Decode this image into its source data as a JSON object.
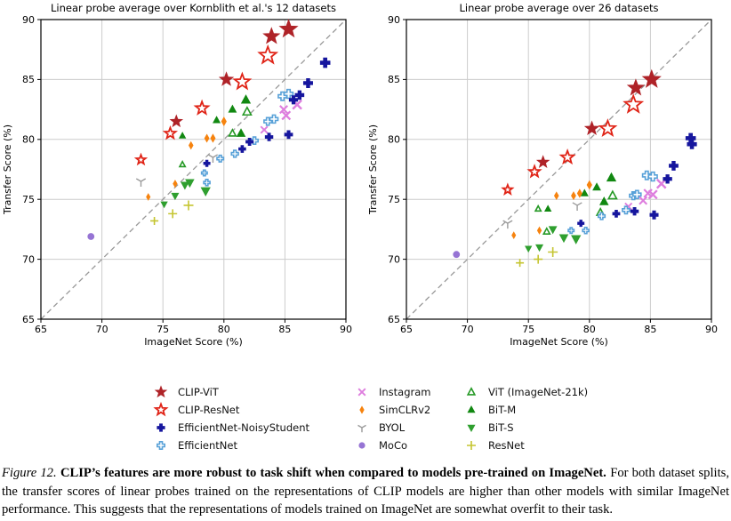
{
  "caption": {
    "label": "Figure 12.",
    "bold": "CLIP’s features are more robust to task shift when compared to models pre-trained on ImageNet.",
    "rest": "For both dataset splits, the transfer scores of linear probes trained on the representations of CLIP models are higher than other models with similar ImageNet performance. This suggests that the representations of models trained on ImageNet are somewhat overfit to their task."
  },
  "colors": {
    "grid": "#cccccc",
    "axis": "#000000",
    "diagonal": "#999999",
    "background": "#ffffff"
  },
  "legend": {
    "position": "bottom",
    "columns": [
      [
        "CLIP-ViT",
        "CLIP-ResNet",
        "EfficientNet-NoisyStudent",
        "EfficientNet"
      ],
      [
        "Instagram",
        "SimCLRv2",
        "BYOL",
        "MoCo"
      ],
      [
        "ViT (ImageNet-21k)",
        "BiT-M",
        "BiT-S",
        "ResNet"
      ]
    ]
  },
  "chart_data": [
    {
      "type": "scatter",
      "title": "Linear probe average over Kornblith et al.'s 12 datasets",
      "xlabel": "ImageNet Score (%)",
      "ylabel": "Transfer Score (%)",
      "xlim": [
        65,
        90
      ],
      "ylim": [
        65,
        90
      ],
      "xticks": [
        65,
        70,
        75,
        80,
        85,
        90
      ],
      "yticks": [
        65,
        70,
        75,
        80,
        85,
        90
      ],
      "grid": true,
      "diagonal": true,
      "series": [
        {
          "name": "CLIP-ViT",
          "marker": "star",
          "filled": true,
          "color": "#af2328",
          "points": [
            [
              76.1,
              81.5,
              7
            ],
            [
              80.2,
              85.0,
              8
            ],
            [
              83.9,
              88.6,
              9.5
            ],
            [
              85.3,
              89.2,
              10.5
            ]
          ]
        },
        {
          "name": "CLIP-ResNet",
          "marker": "star",
          "filled": false,
          "color": "#e02417",
          "points": [
            [
              73.2,
              78.3,
              5.5
            ],
            [
              75.6,
              80.5,
              6.5
            ],
            [
              78.2,
              82.6,
              7.5
            ],
            [
              81.5,
              84.8,
              9
            ],
            [
              83.6,
              87.0,
              10
            ]
          ]
        },
        {
          "name": "EfficientNet-NoisyStudent",
          "marker": "P",
          "filled": true,
          "color": "#16169e",
          "points": [
            [
              78.6,
              78.0,
              3.6
            ],
            [
              81.5,
              79.2,
              3.9
            ],
            [
              82.1,
              79.8,
              4.1
            ],
            [
              83.7,
              80.2,
              4.3
            ],
            [
              85.3,
              80.4,
              4.5
            ],
            [
              85.7,
              83.3,
              4.7
            ],
            [
              86.2,
              83.7,
              4.9
            ],
            [
              86.9,
              84.7,
              5.1
            ],
            [
              88.3,
              86.4,
              5.4
            ]
          ]
        },
        {
          "name": "EfficientNet",
          "marker": "P",
          "filled": false,
          "color": "#58a1d8",
          "points": [
            [
              78.4,
              77.2,
              3.2
            ],
            [
              78.6,
              76.4,
              3.5
            ],
            [
              79.7,
              78.4,
              3.7
            ],
            [
              80.9,
              78.8,
              3.9
            ],
            [
              82.5,
              79.9,
              4.1
            ],
            [
              83.6,
              81.5,
              4.3
            ],
            [
              84.1,
              81.7,
              4.5
            ],
            [
              84.8,
              83.6,
              4.7
            ],
            [
              85.3,
              83.8,
              4.9
            ]
          ]
        },
        {
          "name": "Instagram",
          "marker": "x",
          "filled": false,
          "color": "#de7ede",
          "points": [
            [
              83.3,
              80.8,
              4.5
            ],
            [
              84.9,
              82.5,
              5.0
            ],
            [
              85.1,
              82.0,
              5.4
            ],
            [
              86.0,
              82.9,
              5.8
            ]
          ]
        },
        {
          "name": "SimCLRv2",
          "marker": "d",
          "filled": true,
          "color": "#f6830f",
          "points": [
            [
              73.8,
              75.2,
              3.6
            ],
            [
              76.0,
              76.3,
              3.8
            ],
            [
              77.3,
              79.5,
              4.0
            ],
            [
              78.6,
              80.1,
              4.2
            ],
            [
              79.1,
              80.1,
              4.4
            ],
            [
              80.0,
              81.5,
              4.6
            ]
          ]
        },
        {
          "name": "BYOL",
          "marker": "Y",
          "filled": false,
          "color": "#9b9b9b",
          "points": [
            [
              73.2,
              76.5,
              6
            ],
            [
              79.1,
              78.5,
              6
            ]
          ]
        },
        {
          "name": "MoCo",
          "marker": "o",
          "filled": true,
          "color": "#9674d4",
          "points": [
            [
              69.1,
              71.9,
              3.5
            ]
          ]
        },
        {
          "name": "ViT (ImageNet-21k)",
          "marker": "^",
          "filled": false,
          "color": "#259925",
          "points": [
            [
              76.6,
              77.9,
              3.4
            ],
            [
              80.7,
              80.5,
              4.2
            ],
            [
              81.9,
              82.3,
              5.0
            ]
          ]
        },
        {
          "name": "BiT-M",
          "marker": "^",
          "filled": true,
          "color": "#118811",
          "points": [
            [
              76.6,
              80.3,
              3.8
            ],
            [
              79.4,
              81.6,
              4.2
            ],
            [
              80.7,
              82.5,
              4.6
            ],
            [
              81.4,
              80.5,
              5.0
            ],
            [
              81.8,
              83.3,
              5.4
            ]
          ]
        },
        {
          "name": "BiT-S",
          "marker": "v",
          "filled": true,
          "color": "#2f9f2f",
          "points": [
            [
              75.1,
              74.6,
              3.8
            ],
            [
              76.0,
              75.3,
              4.2
            ],
            [
              76.8,
              76.2,
              4.6
            ],
            [
              77.2,
              76.4,
              5.0
            ],
            [
              78.5,
              75.7,
              5.4
            ]
          ]
        },
        {
          "name": "ResNet",
          "marker": "+",
          "filled": false,
          "color": "#c5c531",
          "points": [
            [
              74.3,
              73.2,
              4.5
            ],
            [
              75.8,
              73.8,
              5.0
            ],
            [
              77.1,
              74.5,
              5.5
            ]
          ]
        }
      ]
    },
    {
      "type": "scatter",
      "title": "Linear probe average over 26 datasets",
      "xlabel": "ImageNet Score (%)",
      "ylabel": "Transfer Score (%)",
      "xlim": [
        65,
        90
      ],
      "ylim": [
        65,
        90
      ],
      "xticks": [
        65,
        70,
        75,
        80,
        85,
        90
      ],
      "yticks": [
        65,
        70,
        75,
        80,
        85,
        90
      ],
      "grid": true,
      "diagonal": true,
      "series": [
        {
          "name": "CLIP-ViT",
          "marker": "star",
          "filled": true,
          "color": "#af2328",
          "points": [
            [
              76.2,
              78.1,
              7
            ],
            [
              80.2,
              80.9,
              8
            ],
            [
              83.8,
              84.3,
              9.5
            ],
            [
              85.1,
              85.0,
              10.5
            ]
          ]
        },
        {
          "name": "CLIP-ResNet",
          "marker": "star",
          "filled": false,
          "color": "#e02417",
          "points": [
            [
              73.3,
              75.8,
              5.5
            ],
            [
              75.5,
              77.3,
              6.5
            ],
            [
              78.2,
              78.5,
              7.5
            ],
            [
              81.5,
              80.9,
              9
            ],
            [
              83.6,
              82.9,
              10
            ]
          ]
        },
        {
          "name": "EfficientNet-NoisyStudent",
          "marker": "P",
          "filled": true,
          "color": "#16169e",
          "points": [
            [
              79.3,
              73.0,
              3.6
            ],
            [
              82.2,
              73.8,
              4.0
            ],
            [
              83.7,
              74.0,
              4.3
            ],
            [
              85.3,
              73.7,
              4.6
            ],
            [
              86.4,
              76.7,
              4.8
            ],
            [
              86.9,
              77.8,
              5.0
            ],
            [
              88.4,
              79.6,
              5.2
            ],
            [
              88.3,
              80.1,
              5.4
            ]
          ]
        },
        {
          "name": "EfficientNet",
          "marker": "P",
          "filled": false,
          "color": "#58a1d8",
          "points": [
            [
              78.5,
              72.4,
              3.2
            ],
            [
              79.7,
              72.4,
              3.5
            ],
            [
              81.0,
              73.6,
              3.8
            ],
            [
              83.0,
              74.1,
              4.1
            ],
            [
              83.6,
              75.3,
              4.3
            ],
            [
              83.9,
              75.4,
              4.5
            ],
            [
              84.7,
              77.0,
              4.7
            ],
            [
              85.2,
              76.9,
              4.9
            ]
          ]
        },
        {
          "name": "Instagram",
          "marker": "x",
          "filled": false,
          "color": "#de7ede",
          "points": [
            [
              83.2,
              74.4,
              4.5
            ],
            [
              84.4,
              74.9,
              4.9
            ],
            [
              84.8,
              75.5,
              5.2
            ],
            [
              85.2,
              75.4,
              5.5
            ],
            [
              85.9,
              76.3,
              5.8
            ]
          ]
        },
        {
          "name": "SimCLRv2",
          "marker": "d",
          "filled": true,
          "color": "#f6830f",
          "points": [
            [
              73.8,
              72.0,
              3.6
            ],
            [
              75.9,
              72.4,
              3.8
            ],
            [
              77.3,
              75.3,
              4.0
            ],
            [
              78.7,
              75.3,
              4.2
            ],
            [
              79.2,
              75.5,
              4.4
            ],
            [
              80.0,
              76.2,
              4.6
            ]
          ]
        },
        {
          "name": "BYOL",
          "marker": "Y",
          "filled": false,
          "color": "#9b9b9b",
          "points": [
            [
              73.3,
              73.0,
              6
            ],
            [
              79.0,
              74.5,
              6
            ]
          ]
        },
        {
          "name": "MoCo",
          "marker": "o",
          "filled": true,
          "color": "#9674d4",
          "points": [
            [
              69.1,
              70.4,
              3.5
            ]
          ]
        },
        {
          "name": "ViT (ImageNet-21k)",
          "marker": "^",
          "filled": false,
          "color": "#259925",
          "points": [
            [
              75.8,
              74.2,
              3.4
            ],
            [
              76.5,
              72.3,
              3.8
            ],
            [
              80.9,
              73.9,
              4.4
            ],
            [
              81.9,
              75.3,
              5.0
            ]
          ]
        },
        {
          "name": "BiT-M",
          "marker": "^",
          "filled": true,
          "color": "#118811",
          "points": [
            [
              76.6,
              74.2,
              3.8
            ],
            [
              79.6,
              75.5,
              4.2
            ],
            [
              80.6,
              76.0,
              4.6
            ],
            [
              81.2,
              74.8,
              5.0
            ],
            [
              81.8,
              76.8,
              5.4
            ]
          ]
        },
        {
          "name": "BiT-S",
          "marker": "v",
          "filled": true,
          "color": "#2f9f2f",
          "points": [
            [
              75.0,
              70.9,
              3.8
            ],
            [
              75.9,
              71.0,
              4.2
            ],
            [
              77.0,
              72.5,
              4.6
            ],
            [
              77.9,
              71.8,
              5.0
            ],
            [
              78.9,
              71.7,
              5.4
            ]
          ]
        },
        {
          "name": "ResNet",
          "marker": "+",
          "filled": false,
          "color": "#c5c531",
          "points": [
            [
              74.3,
              69.7,
              4.5
            ],
            [
              75.8,
              70.0,
              5.0
            ],
            [
              77.0,
              70.6,
              5.5
            ]
          ]
        }
      ]
    }
  ]
}
